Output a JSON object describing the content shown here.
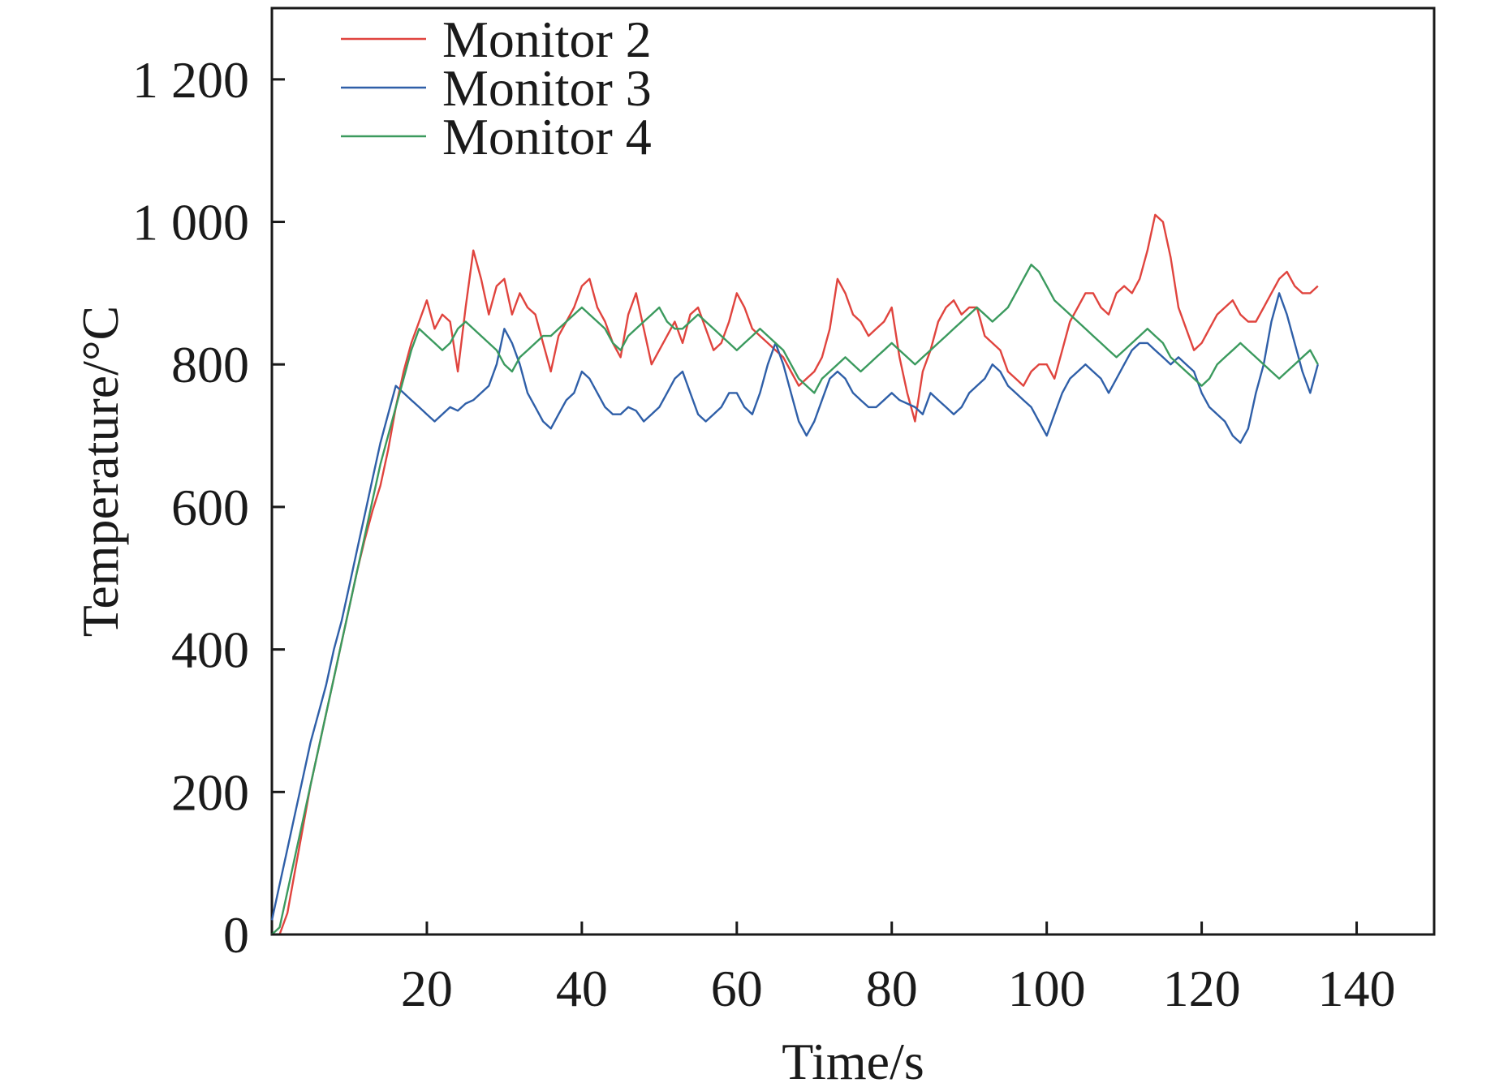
{
  "chart_data": {
    "type": "line",
    "xlabel": "Time/s",
    "ylabel": "Temperature/°C",
    "xlim": [
      0,
      150
    ],
    "ylim": [
      0,
      1300
    ],
    "x_ticks": [
      20,
      40,
      60,
      80,
      100,
      120,
      140
    ],
    "x_tick_labels": [
      "20",
      "40",
      "60",
      "80",
      "100",
      "120",
      "140"
    ],
    "y_ticks": [
      0,
      200,
      400,
      600,
      800,
      1000,
      1200
    ],
    "y_tick_labels": [
      "0",
      "200",
      "400",
      "600",
      "800",
      "1 000",
      "1 200"
    ],
    "grid": false,
    "legend_position": "top-left",
    "x": [
      0,
      1,
      2,
      3,
      4,
      5,
      6,
      7,
      8,
      9,
      10,
      11,
      12,
      13,
      14,
      15,
      16,
      17,
      18,
      19,
      20,
      21,
      22,
      23,
      24,
      25,
      26,
      27,
      28,
      29,
      30,
      31,
      32,
      33,
      34,
      35,
      36,
      37,
      38,
      39,
      40,
      41,
      42,
      43,
      44,
      45,
      46,
      47,
      48,
      49,
      50,
      51,
      52,
      53,
      54,
      55,
      56,
      57,
      58,
      59,
      60,
      61,
      62,
      63,
      64,
      65,
      66,
      67,
      68,
      69,
      70,
      71,
      72,
      73,
      74,
      75,
      76,
      77,
      78,
      79,
      80,
      81,
      82,
      83,
      84,
      85,
      86,
      87,
      88,
      89,
      90,
      91,
      92,
      93,
      94,
      95,
      96,
      97,
      98,
      99,
      100,
      101,
      102,
      103,
      104,
      105,
      106,
      107,
      108,
      109,
      110,
      111,
      112,
      113,
      114,
      115,
      116,
      117,
      118,
      119,
      120,
      121,
      122,
      123,
      124,
      125,
      126,
      127,
      128,
      129,
      130,
      131,
      132,
      133,
      134,
      135
    ],
    "series": [
      {
        "name": "Monitor 2",
        "color": "#e0443e",
        "values": [
          -20,
          -5,
          30,
          90,
          150,
          210,
          260,
          310,
          360,
          410,
          460,
          510,
          555,
          595,
          630,
          680,
          740,
          790,
          830,
          860,
          890,
          850,
          870,
          860,
          790,
          880,
          960,
          920,
          870,
          910,
          920,
          870,
          900,
          880,
          870,
          830,
          790,
          840,
          860,
          880,
          910,
          920,
          880,
          860,
          830,
          810,
          870,
          900,
          850,
          800,
          820,
          840,
          860,
          830,
          870,
          880,
          850,
          820,
          830,
          860,
          900,
          880,
          850,
          840,
          830,
          820,
          810,
          790,
          770,
          780,
          790,
          810,
          850,
          920,
          900,
          870,
          860,
          840,
          850,
          860,
          880,
          810,
          760,
          720,
          790,
          820,
          860,
          880,
          890,
          870,
          880,
          880,
          840,
          830,
          820,
          790,
          780,
          770,
          790,
          800,
          800,
          780,
          820,
          860,
          880,
          900,
          900,
          880,
          870,
          900,
          910,
          900,
          920,
          960,
          1010,
          1000,
          950,
          880,
          850,
          820,
          830,
          850,
          870,
          880,
          890,
          870,
          860,
          860,
          880,
          900,
          920,
          930,
          910,
          900,
          900,
          910
        ]
      },
      {
        "name": "Monitor 3",
        "color": "#2f5fa8",
        "values": [
          20,
          70,
          120,
          170,
          220,
          270,
          310,
          350,
          400,
          440,
          490,
          540,
          590,
          640,
          690,
          730,
          770,
          760,
          750,
          740,
          730,
          720,
          730,
          740,
          735,
          745,
          750,
          760,
          770,
          800,
          850,
          830,
          800,
          760,
          740,
          720,
          710,
          730,
          750,
          760,
          790,
          780,
          760,
          740,
          730,
          730,
          740,
          735,
          720,
          730,
          740,
          760,
          780,
          790,
          760,
          730,
          720,
          730,
          740,
          760,
          760,
          740,
          730,
          760,
          800,
          830,
          800,
          760,
          720,
          700,
          720,
          750,
          780,
          790,
          780,
          760,
          750,
          740,
          740,
          750,
          760,
          750,
          745,
          740,
          730,
          760,
          750,
          740,
          730,
          740,
          760,
          770,
          780,
          800,
          790,
          770,
          760,
          750,
          740,
          720,
          700,
          730,
          760,
          780,
          790,
          800,
          790,
          780,
          760,
          780,
          800,
          820,
          830,
          830,
          820,
          810,
          800,
          810,
          800,
          790,
          760,
          740,
          730,
          720,
          700,
          690,
          710,
          760,
          800,
          860,
          900,
          870,
          830,
          790,
          760,
          800
        ]
      },
      {
        "name": "Monitor 4",
        "color": "#3b9a5e",
        "values": [
          -10,
          10,
          60,
          110,
          160,
          210,
          260,
          310,
          360,
          410,
          460,
          510,
          560,
          610,
          660,
          700,
          740,
          780,
          820,
          850,
          840,
          830,
          820,
          830,
          850,
          860,
          850,
          840,
          830,
          820,
          800,
          790,
          810,
          820,
          830,
          840,
          840,
          850,
          860,
          870,
          880,
          870,
          860,
          850,
          830,
          820,
          840,
          850,
          860,
          870,
          880,
          860,
          850,
          850,
          860,
          870,
          860,
          850,
          840,
          830,
          820,
          830,
          840,
          850,
          840,
          830,
          820,
          800,
          780,
          770,
          760,
          780,
          790,
          800,
          810,
          800,
          790,
          800,
          810,
          820,
          830,
          820,
          810,
          800,
          810,
          820,
          830,
          840,
          850,
          860,
          870,
          880,
          870,
          860,
          870,
          880,
          900,
          920,
          940,
          930,
          910,
          890,
          880,
          870,
          860,
          850,
          840,
          830,
          820,
          810,
          820,
          830,
          840,
          850,
          840,
          830,
          810,
          800,
          790,
          780,
          770,
          780,
          800,
          810,
          820,
          830,
          820,
          810,
          800,
          790,
          780,
          790,
          800,
          810,
          820,
          800
        ]
      }
    ]
  }
}
